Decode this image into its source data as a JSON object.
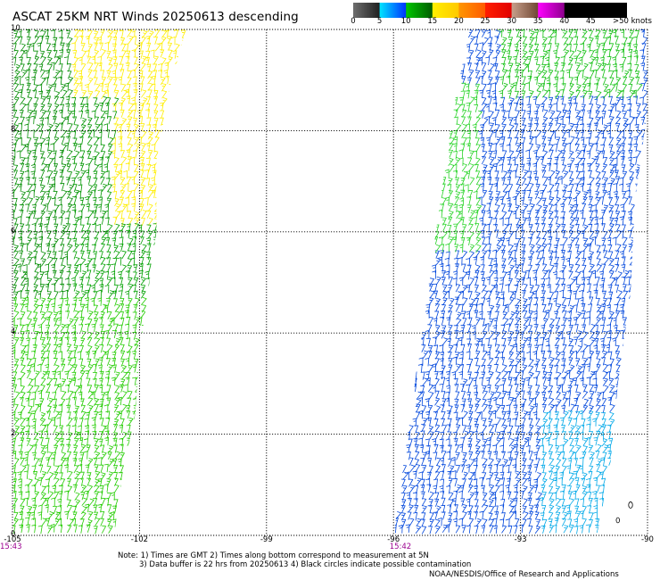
{
  "header": {
    "title": "ASCAT 25KM NRT Winds 20250613 descending"
  },
  "colorbar": {
    "labels": [
      "0",
      "5",
      "10",
      "15",
      "20",
      "25",
      "30",
      "35",
      "40",
      "45"
    ],
    "units_label": ">50 knots",
    "segments": [
      {
        "from": "#6e6e6e",
        "to": "#1e1e1e"
      },
      {
        "from": "#00e5ff",
        "to": "#0030ff"
      },
      {
        "from": "#00c800",
        "to": "#005a00"
      },
      {
        "from": "#fff000",
        "to": "#ffc800"
      },
      {
        "from": "#ff9600",
        "to": "#ff5a00"
      },
      {
        "from": "#ff1e00",
        "to": "#e10000"
      },
      {
        "from": "#c8a08c",
        "to": "#6e4632"
      },
      {
        "from": "#ff00ff",
        "to": "#8c008c"
      }
    ],
    "end_color": "#000000"
  },
  "map": {
    "x_ticks": [
      "-105",
      "-102",
      "-99",
      "-96",
      "-93",
      "-90"
    ],
    "y_ticks": [
      "0",
      "2",
      "4",
      "6",
      "8",
      "10"
    ],
    "xlim": [
      -105,
      -90
    ],
    "ylim": [
      0,
      10
    ],
    "time_labels": [
      {
        "text": "15:43",
        "lon": -105
      },
      {
        "text": "15:42",
        "lon": -95.8
      }
    ],
    "swaths": [
      {
        "name": "west",
        "points": [
          [
            -105,
            10
          ],
          [
            -100.9,
            10
          ],
          [
            -101.3,
            8.8
          ],
          [
            -101.6,
            7.4
          ],
          [
            -101.6,
            6
          ],
          [
            -101.8,
            4.8
          ],
          [
            -102,
            3.6
          ],
          [
            -102.1,
            2.4
          ],
          [
            -102.4,
            1.2
          ],
          [
            -102.6,
            0
          ],
          [
            -105,
            0
          ]
        ],
        "zones": [
          {
            "lat_min": 6.1,
            "lat_max": 10,
            "lon_min": -103.6,
            "lon_max": -100.9,
            "color": "#ffee00"
          },
          {
            "lat_min": 4.6,
            "lat_max": 10,
            "lon_min": -105,
            "lon_max": -103.6,
            "color": "#008c00"
          },
          {
            "lat_min": 6.1,
            "lat_max": 8.6,
            "lon_min": -103.6,
            "lon_max": -102.6,
            "color": "#009600"
          },
          {
            "lat_min": 4.6,
            "lat_max": 6.1,
            "lon_min": -103.6,
            "lon_max": -101.6,
            "color": "#00a000"
          },
          {
            "lat_min": 0,
            "lat_max": 4.6,
            "lon_min": -105,
            "lon_max": -101.8,
            "color": "#22cc00"
          }
        ]
      },
      {
        "name": "east",
        "points": [
          [
            -94.2,
            10
          ],
          [
            -90,
            10
          ],
          [
            -90,
            8.4
          ],
          [
            -90.3,
            6.6
          ],
          [
            -90.4,
            4.8
          ],
          [
            -90.7,
            3
          ],
          [
            -90.9,
            1.2
          ],
          [
            -91.2,
            0
          ],
          [
            -96,
            0
          ],
          [
            -95.8,
            1.2
          ],
          [
            -95.6,
            2.4
          ],
          [
            -95.4,
            3.6
          ],
          [
            -95.2,
            4.8
          ],
          [
            -95,
            6
          ],
          [
            -94.8,
            7.2
          ],
          [
            -94.6,
            8.4
          ],
          [
            -94.4,
            9.2
          ]
        ],
        "zones": [
          {
            "lat_min": 0,
            "lat_max": 10,
            "lon_min": -96,
            "lon_max": -90,
            "color": "#0046dc"
          },
          {
            "lat_min": 5.5,
            "lat_max": 8.8,
            "lon_min": -95.4,
            "lon_max": -94,
            "color": "#2ad42a"
          },
          {
            "lat_min": 8.6,
            "lat_max": 10,
            "lon_min": -93.5,
            "lon_max": -90.2,
            "color": "#12c012"
          },
          {
            "lat_min": 0,
            "lat_max": 2.4,
            "lon_min": -92.6,
            "lon_max": -90.8,
            "color": "#00a8e8"
          }
        ]
      }
    ]
  },
  "notes": {
    "line1": "Note: 1) Times are GMT 2) Times along bottom correspond to measurement at 5N",
    "line2": "3) Data buffer is 22 hrs from 20250613 4) Black circles indicate possible contamination"
  },
  "credit": "NOAA/NESDIS/Office of Research and Applications"
}
